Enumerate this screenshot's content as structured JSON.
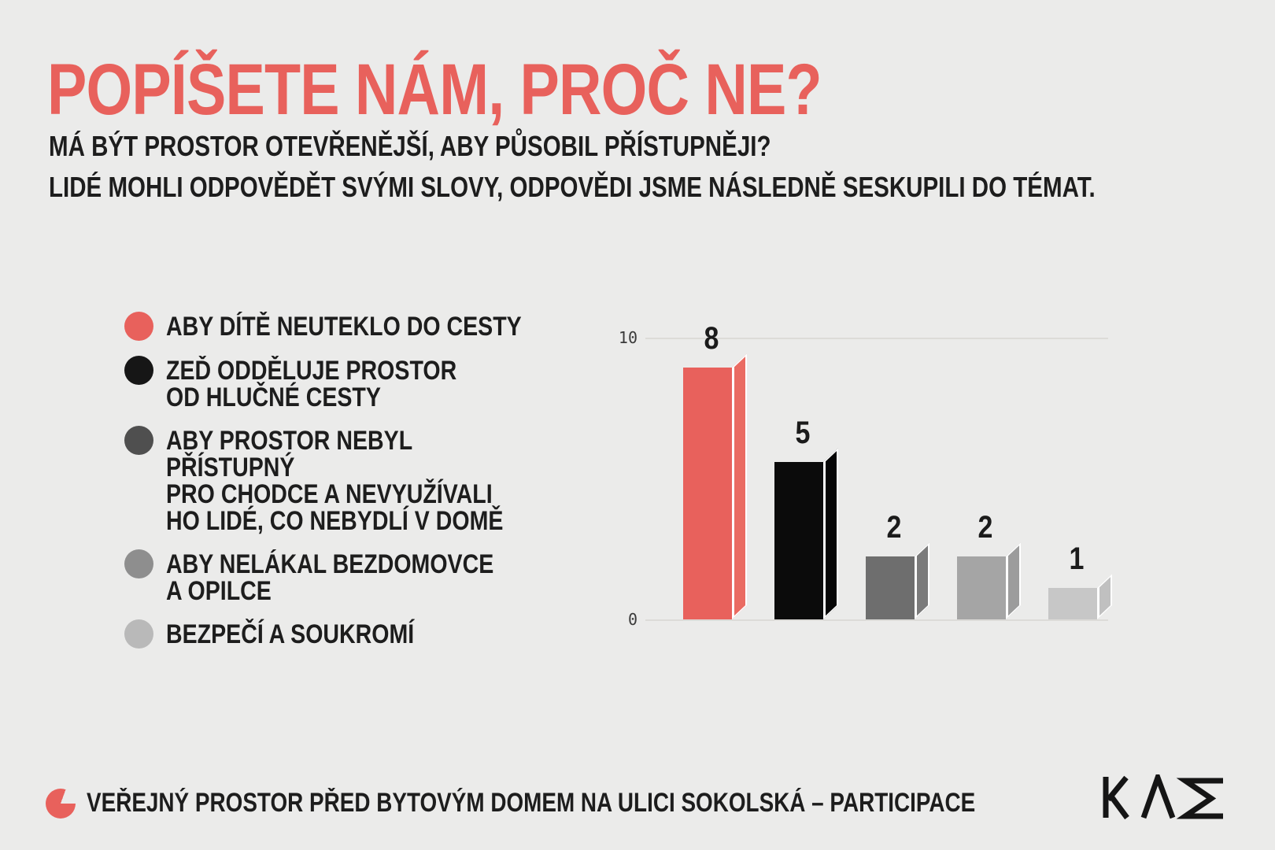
{
  "title": "POPÍŠETE NÁM, PROČ NE?",
  "subtitle1": "MÁ BÝT PROSTOR OTEVŘENĚJŠÍ, ABY PŮSOBIL PŘÍSTUPNĚJI?",
  "subtitle2": "LIDÉ MOHLI ODPOVĚDĚT SVÝMI SLOVY, ODPOVĚDI JSME NÁSLEDNĚ SESKUPILI DO TÉMAT.",
  "colors": {
    "accent_red": "#E8615C",
    "background": "#EBEBEA",
    "text_dark": "#1D1D1D",
    "gridline": "#DCDBD8"
  },
  "legend": {
    "items": [
      {
        "label": "ABY DÍTĚ NEUTEKLO DO CESTY",
        "color": "#E8615C"
      },
      {
        "label": "ZEĎ ODDĚLUJE PROSTOR\nOD HLUČNÉ CESTY",
        "color": "#161616"
      },
      {
        "label": "ABY PROSTOR NEBYL PŘÍSTUPNÝ\nPRO CHODCE A NEVYUŽÍVALI\nHO LIDÉ, CO NEBYDLÍ V DOMĚ",
        "color": "#4F4F4F"
      },
      {
        "label": "ABY NELÁKAL BEZDOMOVCE\nA OPILCE",
        "color": "#8E8E8E"
      },
      {
        "label": "BEZPEČÍ A SOUKROMÍ",
        "color": "#B9B9B9"
      }
    ]
  },
  "chart_data": {
    "type": "bar",
    "title": "",
    "categories": [
      "ABY DÍTĚ NEUTEKLO DO CESTY",
      "ZEĎ ODDĚLUJE PROSTOR OD HLUČNÉ CESTY",
      "ABY PROSTOR NEBYL PŘÍSTUPNÝ PRO CHODCE A NEVYUŽÍVALI HO LIDÉ, CO NEBYDLÍ V DOMĚ",
      "ABY NELÁKAL BEZDOMOVCE A OPILCE",
      "BEZPEČÍ A SOUKROMÍ"
    ],
    "values": [
      8,
      5,
      2,
      2,
      1
    ],
    "bar_colors": [
      "#E8615C",
      "#0B0B0B",
      "#6E6E6E",
      "#A5A5A5",
      "#C7C7C7"
    ],
    "bar_side_colors": [
      "#EA6B62",
      "#060606",
      "#7B7B7B",
      "#9C9C9C",
      "#C0C0C0"
    ],
    "xlabel": "",
    "ylabel": "",
    "ylim": [
      0,
      10
    ],
    "yticks": [
      0,
      10
    ],
    "grid": "horizontal lines at 0 and 10 only",
    "legend_position": "left",
    "style": "3d-extruded bars with white outline on side faces"
  },
  "footer": {
    "label": "VEŘEJNÝ PROSTOR PŘED BYTOVÝM DOMEM NA ULICI SOKOLSKÁ – PARTICIPACE",
    "icon": "pie-wedge-icon"
  },
  "logo": {
    "name": "KAM"
  }
}
